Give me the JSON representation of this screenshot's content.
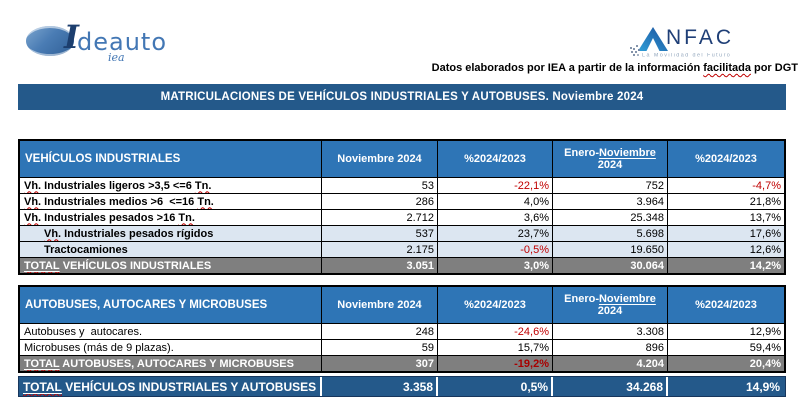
{
  "logos": {
    "ideauto": {
      "i": "I",
      "name": "deauto",
      "sub": "iea"
    },
    "anfac": {
      "name": "NFAC",
      "tagline": "La Movilidad del Futuro"
    }
  },
  "source_note": {
    "before": "Datos elaborados por IEA a partir de la información ",
    "wavy": "facilitada",
    "after": " por DGT"
  },
  "title": "MATRICULACIONES DE VEHÍCULOS INDUSTRIALES Y AUTOBUSES.  Noviembre 2024",
  "column_headers": {
    "col1": "Noviembre 2024",
    "col2": "%2024/2023",
    "col3_prefix": "Enero-",
    "col3_underlined": "Noviembre",
    "col3_line2": "2024",
    "col4": "%2024/2023"
  },
  "tables": [
    {
      "header_label": "VEHÍCULOS INDUSTRIALES",
      "rows": [
        {
          "bold": true,
          "label_segments": [
            {
              "text": "Vh.",
              "wavy": true
            },
            {
              "text": " Industriales ligeros >3,5 <=6 "
            },
            {
              "text": "Tn.",
              "wavy": true
            }
          ],
          "values": [
            "53",
            "-22,1%",
            "752",
            "-4,7%"
          ]
        },
        {
          "bold": true,
          "label_segments": [
            {
              "text": "Vh.",
              "wavy": true
            },
            {
              "text": " Industriales medios >6  <=16 "
            },
            {
              "text": "Tn.",
              "wavy": true
            }
          ],
          "values": [
            "286",
            "4,0%",
            "3.964",
            "21,8%"
          ]
        },
        {
          "bold": true,
          "label_segments": [
            {
              "text": "Vh.",
              "wavy": true
            },
            {
              "text": " Industriales pesados >16 "
            },
            {
              "text": "Tn.",
              "wavy": true
            }
          ],
          "values": [
            "2.712",
            "3,6%",
            "25.348",
            "13,7%"
          ]
        },
        {
          "bold": true,
          "shaded": true,
          "indent": true,
          "label_segments": [
            {
              "text": "Vh.",
              "wavy": true
            },
            {
              "text": " Industriales pesados rígidos"
            }
          ],
          "values": [
            "537",
            "23,7%",
            "5.698",
            "17,6%"
          ]
        },
        {
          "bold": true,
          "shaded": true,
          "indent": true,
          "label_segments": [
            {
              "text": "Tractocamiones"
            }
          ],
          "values": [
            "2.175",
            "-0,5%",
            "19.650",
            "12,6%"
          ]
        },
        {
          "total": true,
          "label_segments": [
            {
              "text": "TOTAL",
              "wavy": true,
              "underline": true
            },
            {
              "text": " VEHÍCULOS INDUSTRIALES"
            }
          ],
          "values": [
            "3.051",
            "3,0%",
            "30.064",
            "14,2%"
          ]
        }
      ]
    },
    {
      "header_label": "AUTOBUSES, AUTOCARES Y MICROBUSES",
      "rows": [
        {
          "label_segments": [
            {
              "text": "Autobuses y  autocares."
            }
          ],
          "values": [
            "248",
            "-24,6%",
            "3.308",
            "12,9%"
          ]
        },
        {
          "label_segments": [
            {
              "text": "Microbuses (más de 9 plazas)."
            }
          ],
          "values": [
            "59",
            "15,7%",
            "896",
            "59,4%"
          ]
        },
        {
          "total": true,
          "label_segments": [
            {
              "text": "TOTAL",
              "wavy": true,
              "underline": true
            },
            {
              "text": " AUTOBUSES, AUTOCARES Y MICROBUSES"
            }
          ],
          "values": [
            "307",
            "-19,2%",
            "4.204",
            "20,4%"
          ]
        }
      ]
    }
  ],
  "grand_total": {
    "label_segments": [
      {
        "text": "TOTAL",
        "wavy": true,
        "underline": true
      },
      {
        "text": " VEHÍCULOS INDUSTRIALES Y AUTOBUSES"
      }
    ],
    "values": [
      "3.358",
      "0,5%",
      "34.268",
      "14,9%"
    ]
  },
  "colors": {
    "title_bar": "#24598A",
    "header_blue": "#2E75B6",
    "shaded_row": "#DCE6F1",
    "total_gray": "#7F7F7F",
    "negative_red": "#C00000",
    "total_negative_red": "#A80000"
  }
}
